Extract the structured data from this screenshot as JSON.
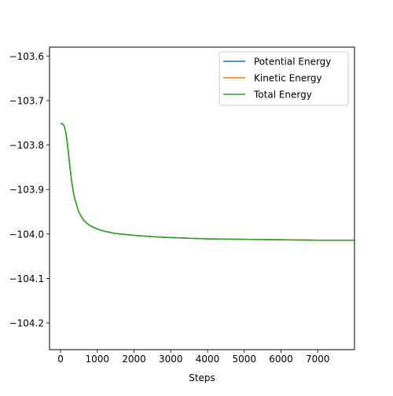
{
  "chart_data": {
    "type": "line",
    "xlabel": "Steps",
    "ylabel": "",
    "xlim": [
      -300,
      8000
    ],
    "ylim": [
      -104.26,
      -103.58
    ],
    "x_ticks": [
      0,
      1000,
      2000,
      3000,
      4000,
      5000,
      6000,
      7000
    ],
    "x_tick_labels": [
      "0",
      "1000",
      "2000",
      "3000",
      "4000",
      "5000",
      "6000",
      "7000"
    ],
    "y_ticks": [
      -103.6,
      -103.7,
      -103.8,
      -103.9,
      -104.0,
      -104.1,
      -104.2
    ],
    "y_tick_labels": [
      "−103.6",
      "−103.7",
      "−103.8",
      "−103.9",
      "−104.0",
      "−104.1",
      "−104.2"
    ],
    "grid": false,
    "legend_position": "top-right",
    "x": [
      0,
      50,
      100,
      150,
      200,
      250,
      300,
      350,
      400,
      500,
      600,
      700,
      800,
      1000,
      1200,
      1500,
      2000,
      2500,
      3000,
      4000,
      5000,
      6000,
      7000,
      8000
    ],
    "series": [
      {
        "name": "Potential Energy",
        "color": "#1f77b4",
        "values": [
          -103.752,
          -103.752,
          -103.757,
          -103.775,
          -103.806,
          -103.846,
          -103.88,
          -103.906,
          -103.925,
          -103.951,
          -103.966,
          -103.975,
          -103.981,
          -103.989,
          -103.994,
          -103.999,
          -104.003,
          -104.006,
          -104.008,
          -104.011,
          -104.012,
          -104.013,
          -104.014,
          -104.014
        ]
      },
      {
        "name": "Kinetic Energy",
        "color": "#ff7f0e",
        "values": [
          -103.752,
          -103.752,
          -103.757,
          -103.775,
          -103.806,
          -103.846,
          -103.88,
          -103.906,
          -103.925,
          -103.951,
          -103.966,
          -103.975,
          -103.981,
          -103.989,
          -103.994,
          -103.999,
          -104.003,
          -104.006,
          -104.008,
          -104.011,
          -104.012,
          -104.013,
          -104.014,
          -104.014
        ]
      },
      {
        "name": "Total Energy",
        "color": "#2ca02c",
        "values": [
          -103.752,
          -103.752,
          -103.757,
          -103.775,
          -103.806,
          -103.846,
          -103.88,
          -103.906,
          -103.925,
          -103.951,
          -103.966,
          -103.975,
          -103.981,
          -103.989,
          -103.994,
          -103.999,
          -104.003,
          -104.006,
          -104.008,
          -104.011,
          -104.012,
          -104.013,
          -104.014,
          -104.014
        ]
      }
    ]
  }
}
